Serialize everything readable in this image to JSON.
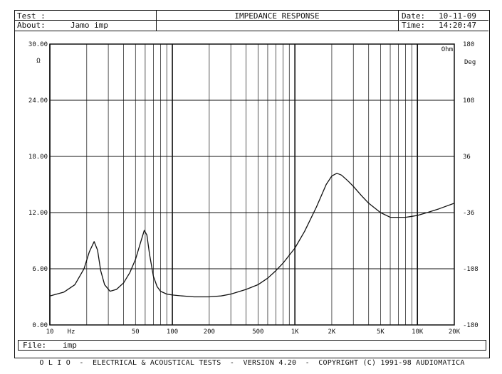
{
  "header": {
    "test_label": "Test :",
    "about_label": "About:",
    "about_value": "Jamo imp",
    "title": "IMPEDANCE RESPONSE",
    "date_label": "Date:",
    "date_value": "10-11-09",
    "time_label": "Time:",
    "time_value": "14:20:47"
  },
  "file": {
    "label": "File:",
    "value": "imp"
  },
  "footer": "O L I O  -  ELECTRICAL & ACOUSTICAL TESTS  -  VERSION 4.20  -  COPYRIGHT (C) 1991-98 AUDIOMATICA",
  "chart_data": {
    "type": "line",
    "x_scale": "log",
    "xlim": [
      10,
      20000
    ],
    "ylim": [
      0,
      30
    ],
    "y2lim": [
      -180,
      180
    ],
    "grid": true,
    "ylabel": "Ω",
    "y2label": "Deg",
    "corner_label": "Ohm",
    "y_ticks": [
      {
        "value": 0,
        "label": "0.00"
      },
      {
        "value": 6,
        "label": "6.00"
      },
      {
        "value": 12,
        "label": "12.00"
      },
      {
        "value": 18,
        "label": "18.00"
      },
      {
        "value": 24,
        "label": "24.00"
      },
      {
        "value": 30,
        "label": "30.00"
      }
    ],
    "y2_ticks": [
      {
        "value": -180,
        "label": "-180"
      },
      {
        "value": -108,
        "label": "-108"
      },
      {
        "value": -36,
        "label": "-36"
      },
      {
        "value": 36,
        "label": "36"
      },
      {
        "value": 108,
        "label": "108"
      },
      {
        "value": 180,
        "label": "180"
      }
    ],
    "x_ticks": [
      {
        "value": 10,
        "label": "10"
      },
      {
        "value": 50,
        "label": "50"
      },
      {
        "value": 100,
        "label": "100"
      },
      {
        "value": 200,
        "label": "200"
      },
      {
        "value": 500,
        "label": "500"
      },
      {
        "value": 1000,
        "label": "1K"
      },
      {
        "value": 2000,
        "label": "2K"
      },
      {
        "value": 5000,
        "label": "5K"
      },
      {
        "value": 10000,
        "label": "10K"
      },
      {
        "value": 20000,
        "label": "20K"
      }
    ],
    "x_unit": "Hz",
    "series": [
      {
        "color": "#111111",
        "x": [
          10,
          13,
          16,
          19,
          21,
          23,
          24.5,
          26,
          28,
          31,
          35,
          40,
          45,
          50,
          55,
          59,
          62,
          65,
          70,
          75,
          80,
          90,
          100,
          120,
          150,
          180,
          200,
          250,
          300,
          400,
          500,
          600,
          700,
          800,
          1000,
          1200,
          1500,
          1800,
          2000,
          2200,
          2400,
          2700,
          3000,
          3500,
          4000,
          5000,
          6000,
          7000,
          8000,
          9000,
          10000,
          12000,
          15000,
          20000
        ],
        "y": [
          3.1,
          3.5,
          4.3,
          6.0,
          7.8,
          8.9,
          8.0,
          5.8,
          4.3,
          3.6,
          3.8,
          4.5,
          5.6,
          7.0,
          8.8,
          10.1,
          9.6,
          7.6,
          5.2,
          4.1,
          3.6,
          3.3,
          3.2,
          3.1,
          3.0,
          3.0,
          3.0,
          3.1,
          3.3,
          3.8,
          4.3,
          5.0,
          5.8,
          6.6,
          8.2,
          10.0,
          12.6,
          15.0,
          15.9,
          16.2,
          16.0,
          15.4,
          14.8,
          13.8,
          13.0,
          12.0,
          11.5,
          11.5,
          11.5,
          11.6,
          11.7,
          12.0,
          12.4,
          13.0
        ]
      }
    ]
  }
}
